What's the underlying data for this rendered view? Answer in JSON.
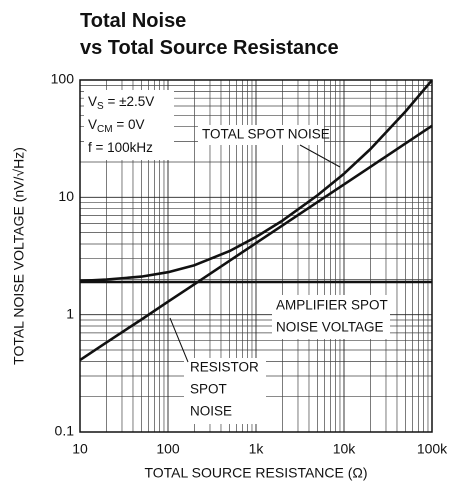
{
  "chart_data": {
    "type": "line",
    "title": [
      "Total Noise",
      "vs Total Source Resistance"
    ],
    "xlabel": "TOTAL SOURCE RESISTANCE (Ω)",
    "ylabel": "TOTAL NOISE VOLTAGE (nV/√Hz)",
    "xscale": "log",
    "yscale": "log",
    "grid": true,
    "minor_grid": true,
    "xlim": [
      10,
      100000
    ],
    "ylim": [
      0.1,
      100
    ],
    "xticks": [
      10,
      100,
      {
        "value": 1000,
        "label": "1k"
      },
      {
        "value": 10000,
        "label": "10k"
      },
      {
        "value": 100000,
        "label": "100k"
      }
    ],
    "yticks": [
      0.1,
      1,
      10,
      100
    ],
    "x": [
      10,
      20,
      50,
      100,
      200,
      500,
      1000,
      2000,
      5000,
      10000,
      20000,
      50000,
      100000
    ],
    "series": [
      {
        "color": "#111111",
        "values": [
          1.94,
          1.99,
          2.11,
          2.3,
          2.64,
          3.48,
          4.59,
          6.33,
          10.4,
          15.9,
          25.8,
          53.9,
          99.7
        ]
      },
      {
        "color": "#111111",
        "values": [
          0.41,
          0.58,
          0.91,
          1.29,
          1.82,
          2.88,
          4.07,
          5.76,
          9.1,
          12.9,
          18.2,
          28.8,
          40.7
        ]
      },
      {
        "color": "#111111",
        "values": [
          1.9,
          1.9,
          1.9,
          1.9,
          1.9,
          1.9,
          1.9,
          1.9,
          1.9,
          1.9,
          1.9,
          1.9,
          1.9
        ]
      }
    ],
    "conditions": [
      {
        "main": "V",
        "sub": "S",
        "rest": " = ±2.5V"
      },
      {
        "main": "V",
        "sub": "CM",
        "rest": " = 0V"
      },
      {
        "main": "f = 100kHz"
      }
    ],
    "annotations": [
      [
        "TOTAL SPOT NOISE"
      ],
      [
        "AMPLIFIER SPOT",
        "NOISE VOLTAGE"
      ],
      [
        "RESISTOR",
        "SPOT",
        "NOISE"
      ]
    ]
  }
}
